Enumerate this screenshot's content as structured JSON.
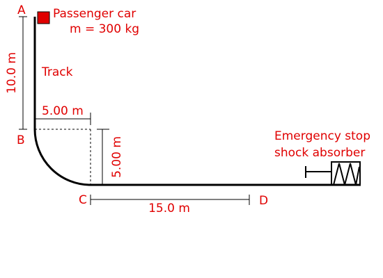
{
  "points": {
    "a": "A",
    "b": "B",
    "c": "C",
    "d": "D"
  },
  "car": {
    "name": "Passenger car",
    "mass": "m = 300 kg",
    "color": "#e00000"
  },
  "labels": {
    "track": "Track",
    "absorber_line1": "Emergency stop",
    "absorber_line2": "shock absorber"
  },
  "dimensions": {
    "vertical_drop": "10.0 m",
    "curve_horizontal": "5.00 m",
    "curve_vertical": "5.00 m",
    "flat_segment": "15.0 m"
  },
  "colors": {
    "label": "#e00000",
    "track": "#000000",
    "dimension": "#000000"
  }
}
